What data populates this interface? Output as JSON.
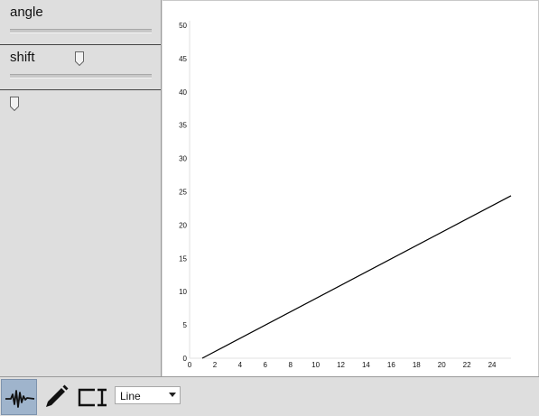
{
  "sliders": [
    {
      "label": "angle",
      "value_fraction": 0.49
    },
    {
      "label": "shift",
      "value_fraction": 0.03
    }
  ],
  "toolbar": {
    "tools": [
      {
        "icon": "waveform-icon",
        "active": true
      },
      {
        "icon": "pencil-icon",
        "active": false
      },
      {
        "icon": "text-cursor-icon",
        "active": false
      }
    ],
    "select_value": "Line"
  },
  "chart_data": {
    "type": "line",
    "xlim": [
      0,
      25.5
    ],
    "ylim": [
      0,
      50
    ],
    "xticks": [
      0,
      2,
      4,
      6,
      8,
      10,
      12,
      14,
      16,
      18,
      20,
      22,
      24
    ],
    "yticks": [
      0,
      5,
      10,
      15,
      20,
      25,
      30,
      35,
      40,
      45,
      50
    ],
    "grid": false,
    "series": [
      {
        "x": [
          1,
          25.5
        ],
        "y": [
          0,
          24.4
        ],
        "color": "#000000"
      }
    ]
  }
}
